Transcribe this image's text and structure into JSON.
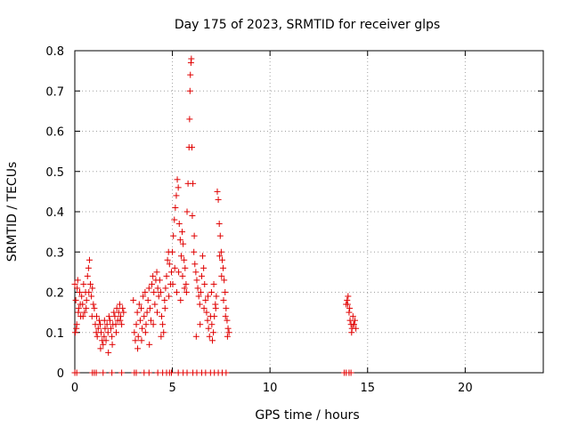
{
  "chart_data": {
    "type": "scatter",
    "title": "Day 175 of 2023, SRMTID for receiver glps",
    "xlabel": "GPS time / hours",
    "ylabel": "SRMTID / TECUs",
    "xlim": [
      0,
      24
    ],
    "ylim": [
      0,
      0.8
    ],
    "x_ticks": [
      0,
      5,
      10,
      15,
      20
    ],
    "y_ticks": [
      0,
      0.1,
      0.2,
      0.3,
      0.4,
      0.5,
      0.6,
      0.7,
      0.8
    ],
    "grid": true,
    "marker": "+",
    "color": "#e00000",
    "series": [
      {
        "name": "SRMTID",
        "points": [
          [
            0.0,
            0.22
          ],
          [
            0.05,
            0.18
          ],
          [
            0.1,
            0.12
          ],
          [
            0.12,
            0.21
          ],
          [
            0.15,
            0.23
          ],
          [
            0.2,
            0.16
          ],
          [
            0.25,
            0.2
          ],
          [
            0.3,
            0.14
          ],
          [
            0.35,
            0.19
          ],
          [
            0.4,
            0.17
          ],
          [
            0.45,
            0.22
          ],
          [
            0.5,
            0.15
          ],
          [
            0.55,
            0.2
          ],
          [
            0.6,
            0.18
          ],
          [
            0.65,
            0.24
          ],
          [
            0.7,
            0.26
          ],
          [
            0.75,
            0.28
          ],
          [
            0.8,
            0.22
          ],
          [
            0.85,
            0.19
          ],
          [
            0.9,
            0.21
          ],
          [
            0.95,
            0.17
          ],
          [
            1.0,
            0.16
          ],
          [
            0.02,
            0.1
          ],
          [
            0.08,
            0.11
          ],
          [
            0.18,
            0.15
          ],
          [
            0.28,
            0.17
          ],
          [
            0.42,
            0.14
          ],
          [
            0.58,
            0.16
          ],
          [
            0.72,
            0.2
          ],
          [
            0.88,
            0.14
          ],
          [
            1.05,
            0.12
          ],
          [
            1.1,
            0.1
          ],
          [
            1.15,
            0.09
          ],
          [
            1.2,
            0.11
          ],
          [
            1.25,
            0.13
          ],
          [
            1.3,
            0.12
          ],
          [
            1.35,
            0.1
          ],
          [
            1.4,
            0.08
          ],
          [
            1.45,
            0.07
          ],
          [
            1.5,
            0.09
          ],
          [
            1.55,
            0.11
          ],
          [
            1.6,
            0.08
          ],
          [
            1.65,
            0.12
          ],
          [
            1.7,
            0.1
          ],
          [
            1.75,
            0.14
          ],
          [
            1.8,
            0.13
          ],
          [
            1.85,
            0.11
          ],
          [
            1.9,
            0.09
          ],
          [
            1.95,
            0.12
          ],
          [
            2.0,
            0.15
          ],
          [
            2.05,
            0.14
          ],
          [
            2.1,
            0.12
          ],
          [
            2.15,
            0.16
          ],
          [
            2.2,
            0.13
          ],
          [
            2.25,
            0.15
          ],
          [
            2.3,
            0.17
          ],
          [
            2.35,
            0.14
          ],
          [
            2.4,
            0.12
          ],
          [
            2.45,
            0.16
          ],
          [
            2.5,
            0.15
          ],
          [
            1.12,
            0.14
          ],
          [
            1.32,
            0.06
          ],
          [
            1.52,
            0.13
          ],
          [
            1.72,
            0.05
          ],
          [
            1.92,
            0.07
          ],
          [
            2.12,
            0.1
          ],
          [
            2.32,
            0.13
          ],
          [
            3.0,
            0.18
          ],
          [
            3.05,
            0.1
          ],
          [
            3.1,
            0.08
          ],
          [
            3.15,
            0.12
          ],
          [
            3.2,
            0.15
          ],
          [
            3.25,
            0.09
          ],
          [
            3.3,
            0.17
          ],
          [
            3.35,
            0.13
          ],
          [
            3.4,
            0.16
          ],
          [
            3.45,
            0.11
          ],
          [
            3.5,
            0.19
          ],
          [
            3.55,
            0.14
          ],
          [
            3.6,
            0.2
          ],
          [
            3.65,
            0.12
          ],
          [
            3.7,
            0.15
          ],
          [
            3.75,
            0.18
          ],
          [
            3.8,
            0.21
          ],
          [
            3.85,
            0.16
          ],
          [
            3.9,
            0.13
          ],
          [
            3.95,
            0.22
          ],
          [
            4.0,
            0.24
          ],
          [
            4.05,
            0.2
          ],
          [
            4.1,
            0.17
          ],
          [
            4.15,
            0.23
          ],
          [
            4.2,
            0.25
          ],
          [
            4.25,
            0.21
          ],
          [
            4.3,
            0.19
          ],
          [
            4.35,
            0.23
          ],
          [
            4.4,
            0.2
          ],
          [
            4.45,
            0.14
          ],
          [
            4.5,
            0.12
          ],
          [
            4.55,
            0.1
          ],
          [
            4.6,
            0.18
          ],
          [
            4.65,
            0.21
          ],
          [
            4.7,
            0.24
          ],
          [
            4.75,
            0.28
          ],
          [
            4.8,
            0.3
          ],
          [
            4.85,
            0.27
          ],
          [
            4.9,
            0.22
          ],
          [
            4.95,
            0.25
          ],
          [
            3.22,
            0.06
          ],
          [
            3.42,
            0.08
          ],
          [
            3.62,
            0.1
          ],
          [
            3.82,
            0.07
          ],
          [
            4.02,
            0.12
          ],
          [
            4.22,
            0.15
          ],
          [
            4.42,
            0.09
          ],
          [
            4.62,
            0.16
          ],
          [
            4.82,
            0.19
          ],
          [
            5.0,
            0.3
          ],
          [
            5.05,
            0.34
          ],
          [
            5.1,
            0.38
          ],
          [
            5.15,
            0.41
          ],
          [
            5.2,
            0.44
          ],
          [
            5.25,
            0.48
          ],
          [
            5.3,
            0.46
          ],
          [
            5.35,
            0.37
          ],
          [
            5.4,
            0.33
          ],
          [
            5.45,
            0.29
          ],
          [
            5.5,
            0.35
          ],
          [
            5.55,
            0.32
          ],
          [
            5.6,
            0.28
          ],
          [
            5.65,
            0.26
          ],
          [
            5.7,
            0.22
          ],
          [
            5.75,
            0.4
          ],
          [
            5.8,
            0.47
          ],
          [
            5.85,
            0.56
          ],
          [
            5.88,
            0.63
          ],
          [
            5.9,
            0.7
          ],
          [
            5.92,
            0.74
          ],
          [
            5.95,
            0.77
          ],
          [
            5.97,
            0.78
          ],
          [
            6.0,
            0.56
          ],
          [
            6.05,
            0.47
          ],
          [
            6.1,
            0.3
          ],
          [
            6.15,
            0.27
          ],
          [
            6.2,
            0.25
          ],
          [
            6.25,
            0.23
          ],
          [
            6.3,
            0.21
          ],
          [
            6.35,
            0.19
          ],
          [
            6.4,
            0.17
          ],
          [
            6.45,
            0.2
          ],
          [
            6.5,
            0.24
          ],
          [
            6.55,
            0.29
          ],
          [
            6.6,
            0.26
          ],
          [
            6.65,
            0.22
          ],
          [
            6.7,
            0.18
          ],
          [
            6.75,
            0.15
          ],
          [
            6.8,
            0.13
          ],
          [
            6.85,
            0.11
          ],
          [
            6.9,
            0.09
          ],
          [
            6.95,
            0.14
          ],
          [
            5.02,
            0.22
          ],
          [
            5.12,
            0.26
          ],
          [
            5.22,
            0.2
          ],
          [
            5.32,
            0.25
          ],
          [
            5.42,
            0.18
          ],
          [
            5.52,
            0.24
          ],
          [
            5.62,
            0.21
          ],
          [
            5.72,
            0.2
          ],
          [
            6.02,
            0.39
          ],
          [
            6.12,
            0.34
          ],
          [
            6.22,
            0.09
          ],
          [
            6.42,
            0.12
          ],
          [
            6.62,
            0.16
          ],
          [
            6.82,
            0.19
          ],
          [
            7.0,
            0.2
          ],
          [
            7.05,
            0.08
          ],
          [
            7.1,
            0.1
          ],
          [
            7.15,
            0.14
          ],
          [
            7.2,
            0.17
          ],
          [
            7.25,
            0.19
          ],
          [
            7.3,
            0.45
          ],
          [
            7.35,
            0.43
          ],
          [
            7.4,
            0.37
          ],
          [
            7.45,
            0.34
          ],
          [
            7.5,
            0.3
          ],
          [
            7.55,
            0.28
          ],
          [
            7.6,
            0.26
          ],
          [
            7.65,
            0.23
          ],
          [
            7.7,
            0.2
          ],
          [
            7.75,
            0.16
          ],
          [
            7.8,
            0.13
          ],
          [
            7.85,
            0.11
          ],
          [
            7.9,
            0.1
          ],
          [
            7.02,
            0.12
          ],
          [
            7.12,
            0.22
          ],
          [
            7.22,
            0.16
          ],
          [
            7.42,
            0.29
          ],
          [
            7.52,
            0.24
          ],
          [
            7.62,
            0.18
          ],
          [
            7.72,
            0.14
          ],
          [
            7.82,
            0.09
          ],
          [
            13.9,
            0.17
          ],
          [
            13.95,
            0.18
          ],
          [
            14.0,
            0.19
          ],
          [
            14.05,
            0.15
          ],
          [
            14.1,
            0.13
          ],
          [
            14.15,
            0.12
          ],
          [
            14.2,
            0.11
          ],
          [
            14.25,
            0.14
          ],
          [
            14.3,
            0.12
          ],
          [
            14.35,
            0.13
          ],
          [
            14.4,
            0.11
          ],
          [
            13.98,
            0.17
          ],
          [
            14.08,
            0.16
          ],
          [
            14.18,
            0.1
          ],
          [
            14.28,
            0.12
          ],
          [
            0.0,
            0.0
          ],
          [
            0.1,
            0.0
          ],
          [
            0.9,
            0.0
          ],
          [
            1.0,
            0.0
          ],
          [
            1.1,
            0.0
          ],
          [
            1.45,
            0.0
          ],
          [
            1.9,
            0.0
          ],
          [
            2.4,
            0.0
          ],
          [
            3.05,
            0.0
          ],
          [
            3.15,
            0.0
          ],
          [
            3.55,
            0.0
          ],
          [
            3.8,
            0.0
          ],
          [
            4.25,
            0.0
          ],
          [
            4.5,
            0.0
          ],
          [
            4.7,
            0.0
          ],
          [
            4.85,
            0.0
          ],
          [
            4.95,
            0.0
          ],
          [
            5.3,
            0.0
          ],
          [
            5.55,
            0.0
          ],
          [
            5.75,
            0.0
          ],
          [
            6.05,
            0.0
          ],
          [
            6.25,
            0.0
          ],
          [
            6.5,
            0.0
          ],
          [
            6.7,
            0.0
          ],
          [
            6.95,
            0.0
          ],
          [
            7.15,
            0.0
          ],
          [
            7.35,
            0.0
          ],
          [
            7.55,
            0.0
          ],
          [
            7.75,
            0.0
          ],
          [
            13.8,
            0.0
          ],
          [
            13.9,
            0.0
          ],
          [
            14.05,
            0.0
          ],
          [
            14.15,
            0.0
          ]
        ]
      }
    ]
  }
}
